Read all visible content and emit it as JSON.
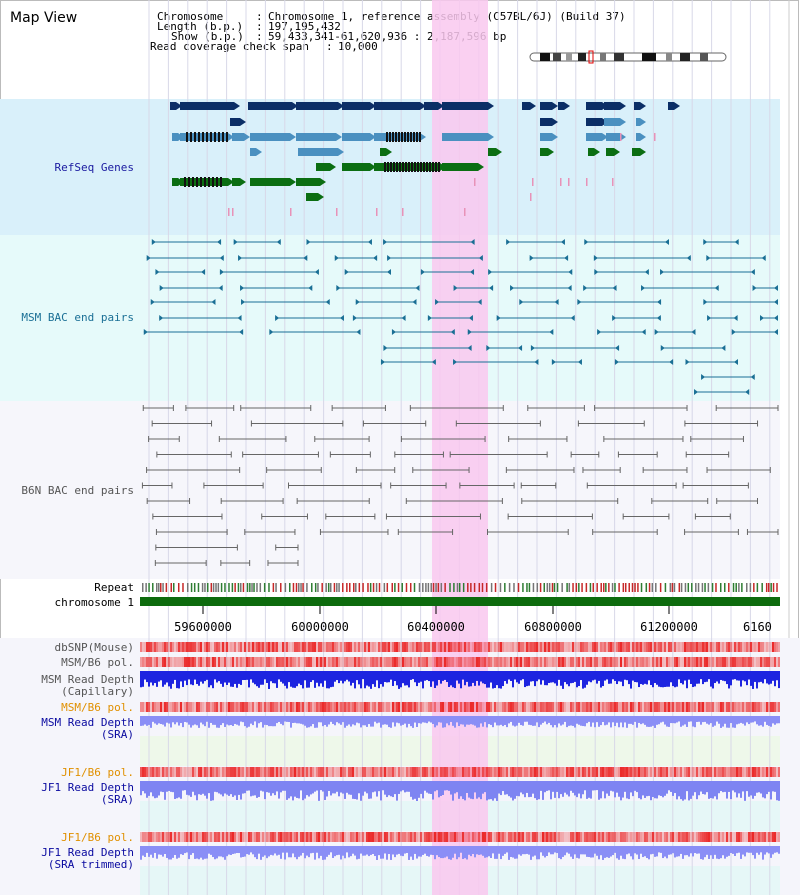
{
  "view_title": "Map View",
  "info": {
    "chromosome_label": "Chromosome",
    "chromosome_value": "Chromosome 1, reference assembly (C57BL/6J) (Build 37)",
    "length_label": "Length (b.p.)",
    "length_value": "197,195,432",
    "show_label": "Show (b.p.)",
    "show_value": "59,433,341-61,620,936 : 2,187,596 bp",
    "coverage_label": "Read coverage check span",
    "coverage_value": "10,000",
    "sep": ":"
  },
  "tracks": {
    "refseq": "RefSeq Genes",
    "msm_bac": "MSM BAC end pairs",
    "b6n_bac": "B6N BAC end pairs",
    "repeat": "Repeat",
    "chromosome": "chromosome 1",
    "dbsnp": "dbSNP(Mouse)",
    "msm_b6_pol": "MSM/B6 pol.",
    "msm_depth_cap_1": "MSM Read Depth",
    "msm_depth_cap_2": "(Capillary)",
    "msm_b6_pol_sra": "MSM/B6 pol.",
    "msm_depth_sra_1": "MSM Read Depth",
    "msm_depth_sra_2": "(SRA)",
    "jf1_b6_pol": "JF1/B6 pol.",
    "jf1_depth_1": "JF1 Read Depth",
    "jf1_depth_2": "(SRA)",
    "jf1_b6_pol_2": "JF1/B6 pol.",
    "jf1_depth_trim_1": "JF1 Read Depth",
    "jf1_depth_trim_2": "(SRA trimmed)"
  },
  "axis": {
    "ticks": [
      "59600000",
      "60000000",
      "60400000",
      "60800000",
      "61200000",
      "6160"
    ]
  },
  "colors": {
    "refseq_bg": "#d9f0fa",
    "msm_bg": "#e6fafa",
    "b6n_bg": "#f6f6fb",
    "highlight": "#f9c8ee",
    "gene_dark": "#0b2e66",
    "gene_mid": "#4a90c0",
    "gene_green": "#0b6e12",
    "msm_line": "#1a6f95",
    "b6n_line": "#666666",
    "chrom": "#0d6b0d",
    "sra_label": "#e09000",
    "depth_label": "#0a0aa0"
  }
}
